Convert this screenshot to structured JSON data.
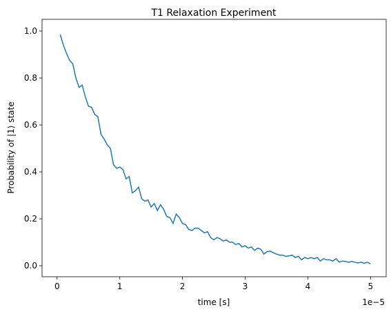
{
  "chart_data": {
    "type": "line",
    "title": "T1 Relaxation Experiment",
    "xlabel": "time [s]",
    "ylabel": "Probability of |1⟩ state",
    "x_offset_label": "1e−5",
    "x": [
      0.05,
      0.1,
      0.15,
      0.2,
      0.25,
      0.3,
      0.35,
      0.4,
      0.45,
      0.5,
      0.55,
      0.6,
      0.65,
      0.7,
      0.75,
      0.8,
      0.85,
      0.9,
      0.95,
      1.0,
      1.05,
      1.1,
      1.15,
      1.2,
      1.25,
      1.3,
      1.35,
      1.4,
      1.45,
      1.5,
      1.55,
      1.6,
      1.65,
      1.7,
      1.75,
      1.8,
      1.85,
      1.9,
      1.95,
      2.0,
      2.05,
      2.1,
      2.15,
      2.2,
      2.25,
      2.3,
      2.35,
      2.4,
      2.45,
      2.5,
      2.55,
      2.6,
      2.65,
      2.7,
      2.75,
      2.8,
      2.85,
      2.9,
      2.95,
      3.0,
      3.05,
      3.1,
      3.15,
      3.2,
      3.25,
      3.3,
      3.35,
      3.4,
      3.45,
      3.5,
      3.55,
      3.6,
      3.65,
      3.7,
      3.75,
      3.8,
      3.85,
      3.9,
      3.95,
      4.0,
      4.05,
      4.1,
      4.15,
      4.2,
      4.25,
      4.3,
      4.35,
      4.4,
      4.45,
      4.5,
      4.55,
      4.6,
      4.65,
      4.7,
      4.75,
      4.8,
      4.85,
      4.9,
      4.95,
      5.0
    ],
    "series": [
      {
        "color": "#1f77b4",
        "values": [
          0.985,
          0.94,
          0.905,
          0.875,
          0.86,
          0.8,
          0.76,
          0.77,
          0.72,
          0.68,
          0.675,
          0.645,
          0.635,
          0.56,
          0.54,
          0.515,
          0.5,
          0.43,
          0.415,
          0.42,
          0.41,
          0.37,
          0.38,
          0.31,
          0.32,
          0.335,
          0.285,
          0.275,
          0.28,
          0.25,
          0.265,
          0.235,
          0.26,
          0.24,
          0.21,
          0.205,
          0.18,
          0.22,
          0.205,
          0.18,
          0.175,
          0.155,
          0.15,
          0.16,
          0.16,
          0.15,
          0.14,
          0.145,
          0.12,
          0.11,
          0.12,
          0.115,
          0.105,
          0.11,
          0.1,
          0.1,
          0.09,
          0.095,
          0.08,
          0.085,
          0.075,
          0.08,
          0.065,
          0.075,
          0.07,
          0.05,
          0.06,
          0.062,
          0.055,
          0.05,
          0.045,
          0.045,
          0.04,
          0.042,
          0.045,
          0.035,
          0.04,
          0.025,
          0.035,
          0.03,
          0.035,
          0.03,
          0.035,
          0.02,
          0.03,
          0.025,
          0.025,
          0.02,
          0.03,
          0.015,
          0.02,
          0.018,
          0.015,
          0.018,
          0.015,
          0.012,
          0.015,
          0.01,
          0.015,
          0.008
        ]
      }
    ],
    "xlim": [
      -0.24,
      5.25
    ],
    "xticks": [
      0,
      1,
      2,
      3,
      4,
      5
    ],
    "ylim": [
      -0.047,
      1.05
    ],
    "yticks": [
      {
        "value": 0,
        "label": "0.0"
      },
      0.2,
      0.4,
      0.6,
      0.8,
      {
        "value": 1,
        "label": "1.0"
      }
    ]
  }
}
